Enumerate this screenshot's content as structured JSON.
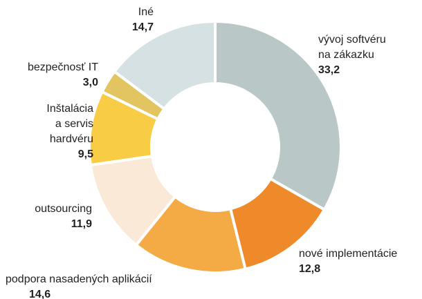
{
  "chart_data": {
    "type": "donut",
    "categories": [
      "vývoj softvéru\nna zákazku",
      "nové implementácie",
      "podpora nasadených aplikácií",
      "outsourcing",
      "Inštalácia\na servis\nhardvéru",
      "bezpečnosť IT",
      "Iné"
    ],
    "values": [
      33.2,
      12.8,
      14.6,
      11.9,
      9.5,
      3.0,
      14.7
    ],
    "value_labels": [
      "33,2",
      "12,8",
      "14,6",
      "11,9",
      "9,5",
      "3,0",
      "14,7"
    ],
    "colors": [
      "#b9c7c7",
      "#ef8a2b",
      "#f5ab45",
      "#f9e9d6",
      "#f9cc45",
      "#e2c460",
      "#d6e1e3"
    ]
  }
}
